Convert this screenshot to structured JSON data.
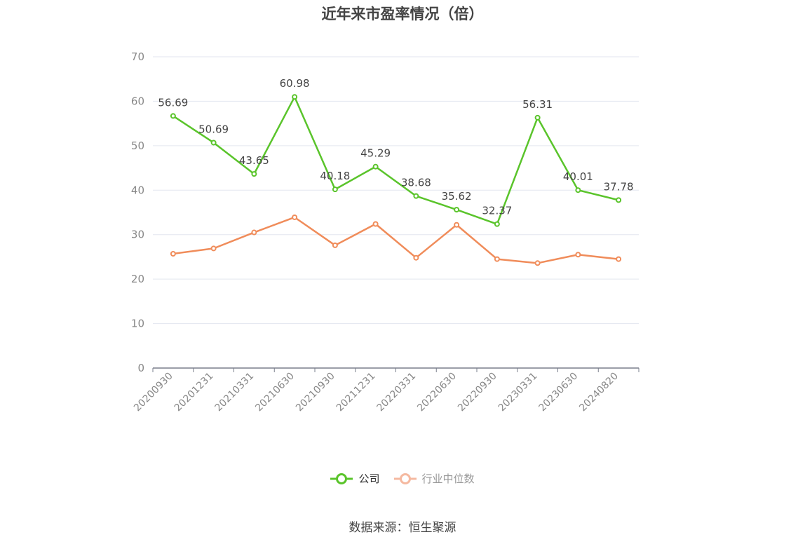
{
  "chart_data": {
    "type": "line",
    "title": "近年来市盈率情况（倍）",
    "categories": [
      "20200930",
      "20201231",
      "20210331",
      "20210630",
      "20210930",
      "20211231",
      "20220331",
      "20220630",
      "20220930",
      "20230331",
      "20230630",
      "20240820"
    ],
    "series": [
      {
        "name": "公司",
        "color": "#5ac42b",
        "values": [
          56.69,
          50.69,
          43.65,
          60.98,
          40.18,
          45.29,
          38.68,
          35.62,
          32.37,
          56.31,
          40.01,
          37.78
        ],
        "labels": [
          "56.69",
          "50.69",
          "43.65",
          "60.98",
          "40.18",
          "45.29",
          "38.68",
          "35.62",
          "32.37",
          "56.31",
          "40.01",
          "37.78"
        ]
      },
      {
        "name": "行业中位数",
        "color": "#f08c5a",
        "values": [
          25.7,
          26.9,
          30.5,
          33.9,
          27.6,
          32.4,
          24.8,
          32.2,
          24.5,
          23.6,
          25.5,
          24.5
        ]
      }
    ],
    "yticks": [
      "0",
      "10",
      "20",
      "30",
      "40",
      "50",
      "60",
      "70"
    ],
    "ylim": [
      0,
      70
    ],
    "grid": true,
    "legend_position": "bottom"
  },
  "source": "数据来源：恒生聚源"
}
